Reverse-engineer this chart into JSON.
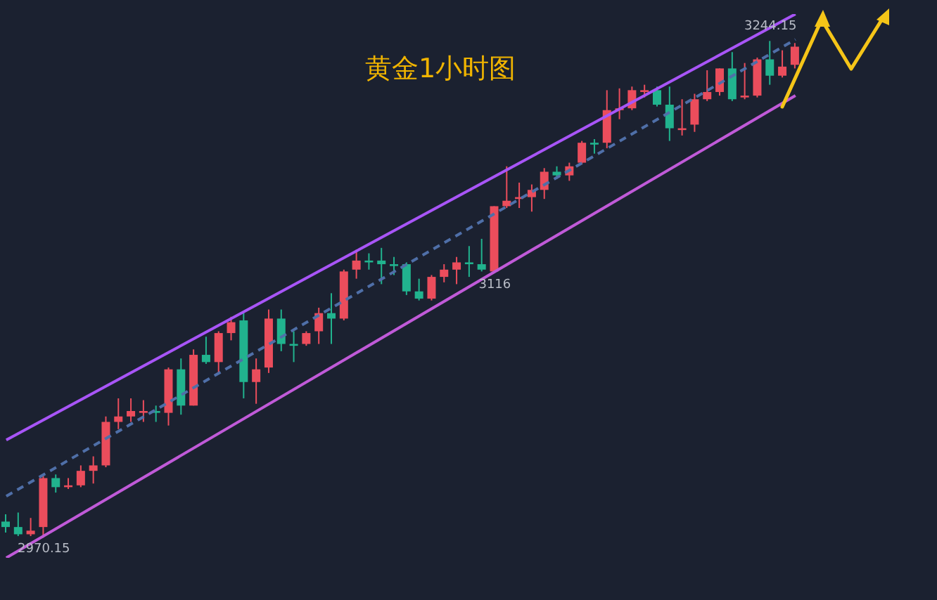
{
  "chart_data": {
    "type": "candlestick",
    "title": "黄金1小时图",
    "categories": [
      null,
      null,
      null,
      null,
      null,
      null,
      null,
      null,
      null,
      null,
      null,
      null,
      null,
      null,
      null,
      null,
      null,
      null,
      null,
      null,
      null,
      null,
      null,
      null,
      null,
      null,
      null,
      null,
      null,
      null,
      null,
      null,
      null,
      null,
      null,
      null,
      null,
      null,
      null,
      null,
      null,
      null,
      null,
      null,
      null,
      null,
      null,
      null,
      null,
      null,
      null,
      null,
      null,
      null,
      null,
      null,
      null,
      null,
      null,
      null,
      null,
      null,
      null,
      null
    ],
    "ohlc": [
      [
        2979,
        2983,
        2973,
        2976
      ],
      [
        2976,
        2984,
        2971,
        2972
      ],
      [
        2972,
        2981,
        2971,
        2974
      ],
      [
        2976,
        3005,
        2970.15,
        3003
      ],
      [
        3003,
        3005,
        2995,
        2998
      ],
      [
        2998,
        3003,
        2997,
        2999
      ],
      [
        2999,
        3010,
        2998,
        3007
      ],
      [
        3007,
        3015,
        3000,
        3010
      ],
      [
        3010,
        3037,
        3009,
        3034
      ],
      [
        3034,
        3047,
        3030,
        3037
      ],
      [
        3037,
        3047,
        3034,
        3040
      ],
      [
        3039,
        3046,
        3034,
        3040
      ],
      [
        3040,
        3043,
        3034,
        3039
      ],
      [
        3039,
        3064,
        3032,
        3063
      ],
      [
        3063,
        3069,
        3038,
        3043
      ],
      [
        3043,
        3074,
        3043,
        3071
      ],
      [
        3071,
        3081,
        3066,
        3067
      ],
      [
        3067,
        3084,
        3061,
        3083
      ],
      [
        3083,
        3092,
        3079,
        3089
      ],
      [
        3090,
        3095,
        3047,
        3056
      ],
      [
        3056,
        3069,
        3044,
        3063
      ],
      [
        3064,
        3096,
        3061,
        3091
      ],
      [
        3091,
        3096,
        3073,
        3077
      ],
      [
        3077,
        3084,
        3067,
        3076
      ],
      [
        3077,
        3084,
        3076,
        3083
      ],
      [
        3084,
        3097,
        3077,
        3094
      ],
      [
        3094,
        3105,
        3077,
        3091
      ],
      [
        3091,
        3118,
        3090,
        3117
      ],
      [
        3118,
        3129,
        3113,
        3123
      ],
      [
        3123,
        3127,
        3118,
        3122
      ],
      [
        3123,
        3130,
        3110,
        3121
      ],
      [
        3121,
        3125,
        3115,
        3120
      ],
      [
        3121,
        3122,
        3104,
        3106
      ],
      [
        3106,
        3113,
        3101,
        3102
      ],
      [
        3102,
        3115,
        3101,
        3114
      ],
      [
        3114,
        3121,
        3111,
        3118
      ],
      [
        3118,
        3125,
        3110,
        3122
      ],
      [
        3122,
        3131,
        3114,
        3121
      ],
      [
        3121,
        3135,
        3117,
        3118
      ],
      [
        3117,
        3153,
        3116,
        3153
      ],
      [
        3153,
        3175,
        3152,
        3156
      ],
      [
        3157,
        3166,
        3152,
        3158
      ],
      [
        3158,
        3165,
        3150,
        3162
      ],
      [
        3162,
        3174,
        3157,
        3172
      ],
      [
        3172,
        3175,
        3168,
        3170
      ],
      [
        3170,
        3177,
        3167,
        3175
      ],
      [
        3177,
        3189,
        3176,
        3188
      ],
      [
        3188,
        3190,
        3182,
        3187
      ],
      [
        3188,
        3217,
        3185,
        3206
      ],
      [
        3206,
        3218,
        3201,
        3207
      ],
      [
        3207,
        3219,
        3206,
        3217
      ],
      [
        3216,
        3220,
        3213,
        3217
      ],
      [
        3217,
        3219,
        3208,
        3209
      ],
      [
        3209,
        3219,
        3189,
        3196
      ],
      [
        3195,
        3212,
        3192,
        3196
      ],
      [
        3198,
        3215,
        3194,
        3212
      ],
      [
        3212,
        3228,
        3211,
        3216
      ],
      [
        3216,
        3229,
        3214,
        3229
      ],
      [
        3229,
        3238,
        3211,
        3212
      ],
      [
        3213,
        3232,
        3212,
        3214
      ],
      [
        3214,
        3235,
        3213,
        3234
      ],
      [
        3234,
        3244.15,
        3220,
        3225
      ],
      [
        3225,
        3239,
        3224,
        3230
      ],
      [
        3231,
        3243,
        3229,
        3241
      ]
    ],
    "colors": [
      "#21b38e",
      "#21b38e",
      "#eb4d5c",
      "#eb4d5c",
      "#21b38e",
      "#eb4d5c",
      "#eb4d5c",
      "#eb4d5c",
      "#eb4d5c",
      "#eb4d5c",
      "#eb4d5c",
      "#eb4d5c",
      "#21b38e",
      "#eb4d5c",
      "#21b38e",
      "#eb4d5c",
      "#21b38e",
      "#eb4d5c",
      "#eb4d5c",
      "#21b38e",
      "#eb4d5c",
      "#eb4d5c",
      "#21b38e",
      "#21b38e",
      "#eb4d5c",
      "#eb4d5c",
      "#21b38e",
      "#eb4d5c",
      "#eb4d5c",
      "#21b38e",
      "#21b38e",
      "#21b38e",
      "#21b38e",
      "#21b38e",
      "#eb4d5c",
      "#eb4d5c",
      "#eb4d5c",
      "#21b38e",
      "#21b38e",
      "#eb4d5c",
      "#eb4d5c",
      "#eb4d5c",
      "#eb4d5c",
      "#eb4d5c",
      "#21b38e",
      "#eb4d5c",
      "#eb4d5c",
      "#21b38e",
      "#eb4d5c",
      "#eb4d5c",
      "#eb4d5c",
      "#eb4d5c",
      "#21b38e",
      "#21b38e",
      "#eb4d5c",
      "#eb4d5c",
      "#eb4d5c",
      "#eb4d5c",
      "#21b38e",
      "#eb4d5c",
      "#eb4d5c",
      "#21b38e",
      "#eb4d5c",
      "#eb4d5c"
    ],
    "series": [
      {
        "type": "line",
        "color": "#a855f7",
        "values": [
          3024,
          null,
          null,
          null,
          null,
          null,
          null,
          null,
          null,
          null,
          null,
          null,
          null,
          null,
          null,
          null,
          null,
          null,
          null,
          null,
          null,
          null,
          null,
          null,
          null,
          null,
          null,
          null,
          null,
          null,
          null,
          null,
          null,
          null,
          null,
          null,
          null,
          null,
          null,
          null,
          null,
          null,
          null,
          null,
          null,
          null,
          null,
          null,
          null,
          null,
          null,
          null,
          null,
          null,
          null,
          null,
          null,
          null,
          null,
          null,
          null,
          null,
          null,
          3259
        ]
      },
      {
        "type": "line",
        "color": "#4f6fa8",
        "line_style": "dashed",
        "values": [
          2993,
          null,
          null,
          null,
          null,
          null,
          null,
          null,
          null,
          null,
          null,
          null,
          null,
          null,
          null,
          null,
          null,
          null,
          null,
          null,
          null,
          null,
          null,
          null,
          null,
          null,
          null,
          null,
          null,
          null,
          null,
          null,
          null,
          null,
          null,
          null,
          null,
          null,
          null,
          null,
          null,
          null,
          null,
          null,
          null,
          null,
          null,
          null,
          null,
          null,
          null,
          null,
          null,
          null,
          null,
          null,
          null,
          null,
          null,
          null,
          null,
          null,
          null,
          3245
        ]
      },
      {
        "type": "line",
        "color": "#c05ad8",
        "values": [
          2959,
          null,
          null,
          null,
          null,
          null,
          null,
          null,
          null,
          null,
          null,
          null,
          null,
          null,
          null,
          null,
          null,
          null,
          null,
          null,
          null,
          null,
          null,
          null,
          null,
          null,
          null,
          null,
          null,
          null,
          null,
          null,
          null,
          null,
          null,
          null,
          null,
          null,
          null,
          null,
          null,
          null,
          null,
          null,
          null,
          null,
          null,
          null,
          null,
          null,
          null,
          null,
          null,
          null,
          null,
          null,
          null,
          null,
          null,
          null,
          null,
          null,
          null,
          3214
        ]
      }
    ],
    "annotations": [
      {
        "text": "2970.15",
        "y": 2970.15
      },
      {
        "text": "3116",
        "y": 3116
      },
      {
        "text": "3244.15",
        "y": 3244.15
      }
    ],
    "tick_labels": false
  }
}
